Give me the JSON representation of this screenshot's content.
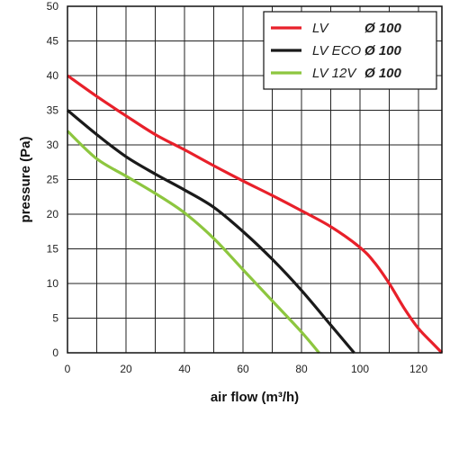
{
  "chart_data": {
    "type": "line",
    "xlabel": "air flow (m³/h)",
    "ylabel": "pressure (Pa)",
    "xlim": [
      0,
      128
    ],
    "ylim": [
      0,
      50
    ],
    "x_ticks": [
      0,
      20,
      40,
      60,
      80,
      100,
      120
    ],
    "y_ticks": [
      0,
      5,
      10,
      15,
      20,
      25,
      30,
      35,
      40,
      45,
      50
    ],
    "grid": true,
    "legend_position": "top-right",
    "series": [
      {
        "name": "LV",
        "diameter": "Ø 100",
        "color": "#e8202a",
        "x": [
          0,
          10,
          20,
          30,
          40,
          50,
          60,
          70,
          80,
          90,
          100,
          105,
          110,
          115,
          120,
          125,
          128
        ],
        "y": [
          40,
          37,
          34.2,
          31.5,
          29.3,
          27,
          24.8,
          22.7,
          20.5,
          18.2,
          15.2,
          13,
          10,
          6.5,
          3.5,
          1.3,
          0
        ]
      },
      {
        "name": "LV ECO",
        "diameter": "Ø 100",
        "color": "#1a1a1a",
        "x": [
          0,
          10,
          20,
          30,
          40,
          50,
          60,
          70,
          80,
          90,
          95,
          98
        ],
        "y": [
          35,
          31.5,
          28.3,
          25.8,
          23.5,
          21,
          17.5,
          13.5,
          9,
          4,
          1.5,
          0
        ]
      },
      {
        "name": "LV 12V",
        "diameter": "Ø 100",
        "color": "#8dc63f",
        "x": [
          0,
          10,
          20,
          30,
          40,
          50,
          60,
          70,
          80,
          86
        ],
        "y": [
          32,
          28,
          25.5,
          23,
          20.2,
          16.5,
          12,
          7.5,
          3,
          0
        ]
      }
    ]
  }
}
